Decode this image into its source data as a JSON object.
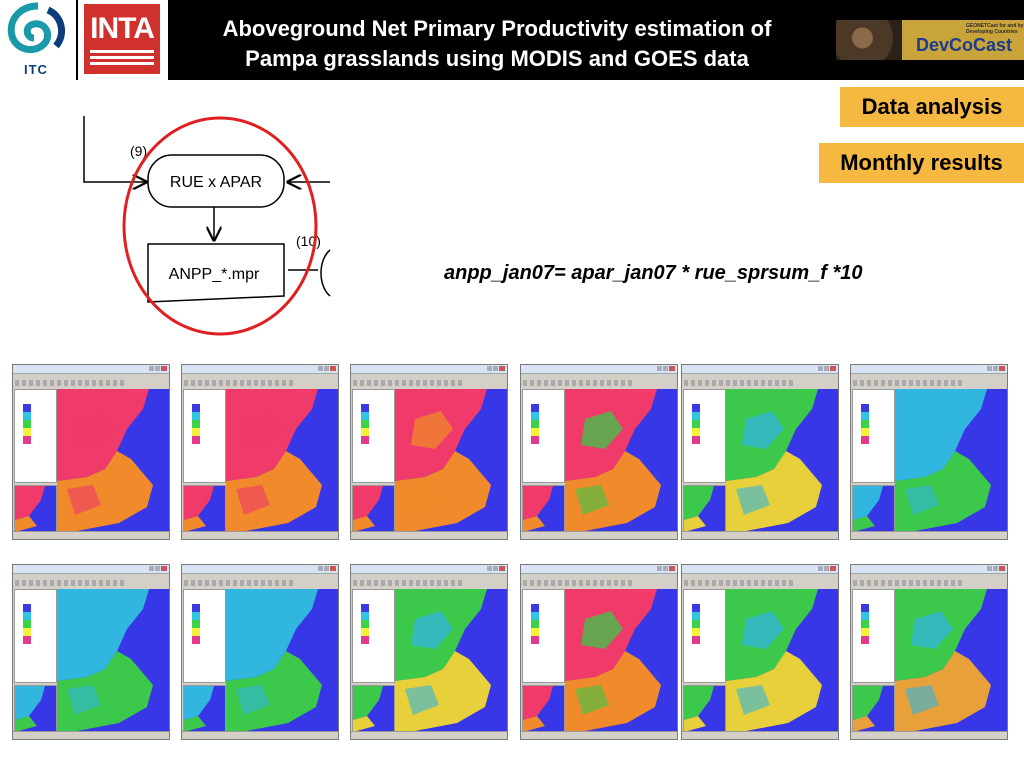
{
  "header": {
    "title_line1": "Aboveground Net Primary Productivity estimation of",
    "title_line2": "Pampa grasslands using MODIS and GOES data",
    "logo_left_text": "ITC",
    "logo_inta_text": "INTA",
    "logo_right_text": "DevCoCast",
    "logo_right_small": "GEONETCast for and by Developing Countries"
  },
  "tags": {
    "data_analysis": "Data analysis",
    "monthly_results": "Monthly results"
  },
  "formula": "anpp_jan07= apar_jan07 * rue_sprsum_f *10",
  "diagram": {
    "label_9": "(9)",
    "label_10": "(10)",
    "box_rue": "RUE x APAR",
    "box_anpp": "ANPP_*.mpr"
  },
  "thumbnails": {
    "rows": [
      [
        {
          "id": "jan",
          "colors": {
            "water": "#3737e8",
            "north": "#ef3a6a",
            "south": "#f08a2a",
            "mix": "#ef3a6a"
          }
        },
        {
          "id": "feb",
          "colors": {
            "water": "#3737e8",
            "north": "#ef3a6a",
            "south": "#f08a2a",
            "mix": "#ef3a6a"
          }
        },
        {
          "id": "mar",
          "colors": {
            "water": "#3737e8",
            "north": "#ef3a6a",
            "south": "#f08a2a",
            "mix": "#f08a2a"
          }
        },
        {
          "id": "apr",
          "colors": {
            "water": "#3737e8",
            "north": "#ef3a6a",
            "south": "#f08a2a",
            "mix": "#3cc84a"
          }
        },
        {
          "id": "may",
          "colors": {
            "water": "#3737e8",
            "north": "#3cc84a",
            "south": "#e8d03a",
            "mix": "#31b6e0"
          }
        },
        {
          "id": "jun",
          "colors": {
            "water": "#3737e8",
            "north": "#31b6e0",
            "south": "#3cc84a",
            "mix": "#31b6e0"
          }
        }
      ],
      [
        {
          "id": "jul",
          "colors": {
            "water": "#3737e8",
            "north": "#31b6e0",
            "south": "#3cc84a",
            "mix": "#31b6e0"
          }
        },
        {
          "id": "aug",
          "colors": {
            "water": "#3737e8",
            "north": "#31b6e0",
            "south": "#3cc84a",
            "mix": "#31b6e0"
          }
        },
        {
          "id": "sep",
          "colors": {
            "water": "#3737e8",
            "north": "#3cc84a",
            "south": "#e8d03a",
            "mix": "#31b6e0"
          }
        },
        {
          "id": "oct",
          "colors": {
            "water": "#3737e8",
            "north": "#ef3a6a",
            "south": "#f08a2a",
            "mix": "#3cc84a"
          }
        },
        {
          "id": "nov",
          "colors": {
            "water": "#3737e8",
            "north": "#3cc84a",
            "south": "#e8d03a",
            "mix": "#31b6e0"
          }
        },
        {
          "id": "dec",
          "colors": {
            "water": "#3737e8",
            "north": "#3cc84a",
            "south": "#e8a03a",
            "mix": "#31b6e0"
          }
        }
      ]
    ]
  }
}
